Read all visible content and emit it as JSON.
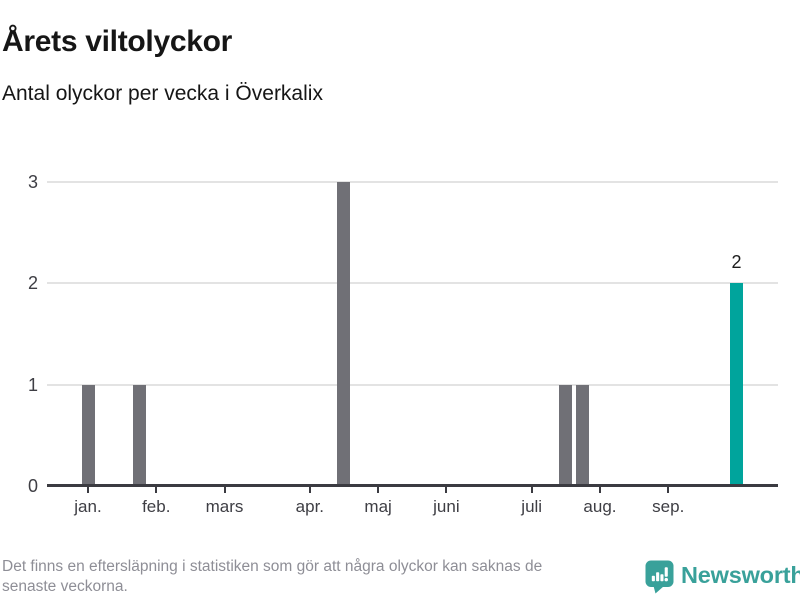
{
  "header": {
    "title": "Årets viltolyckor",
    "subtitle": "Antal olyckor per vecka i Överkalix"
  },
  "footer": {
    "note_lines": [
      "Det finns en eftersläpning i statistiken som gör att några olyckor kan saknas de",
      "senaste veckorna."
    ],
    "brand": "Newsworthy"
  },
  "chart_data": {
    "type": "bar",
    "title": "Årets viltolyckor",
    "subtitle": "Antal olyckor per vecka i Överkalix",
    "x_unit": "vecka (weekly bars, januari till september)",
    "ylabel": "Antal olyckor",
    "ylim": [
      0,
      3.2
    ],
    "y_ticks": [
      0,
      1,
      2,
      3
    ],
    "gridline_values": [
      1,
      2,
      3
    ],
    "grid": "horizontal only",
    "legend": "none",
    "x_ticks": [
      {
        "week": 2,
        "label": "jan."
      },
      {
        "week": 6,
        "label": "feb."
      },
      {
        "week": 10,
        "label": "mars"
      },
      {
        "week": 15,
        "label": "apr."
      },
      {
        "week": 19,
        "label": "maj"
      },
      {
        "week": 23,
        "label": "juni"
      },
      {
        "week": 28,
        "label": "juli"
      },
      {
        "week": 32,
        "label": "aug."
      },
      {
        "week": 36,
        "label": "sep."
      }
    ],
    "bars": [
      {
        "week": 2,
        "value": 1,
        "highlight": false
      },
      {
        "week": 5,
        "value": 1,
        "highlight": false
      },
      {
        "week": 17,
        "value": 3,
        "highlight": false
      },
      {
        "week": 30,
        "value": 1,
        "highlight": false
      },
      {
        "week": 31,
        "value": 1,
        "highlight": false
      },
      {
        "week": 40,
        "value": 2,
        "highlight": true,
        "data_label": "2"
      }
    ],
    "all_other_weeks_value": 0,
    "colors": {
      "bar": "#707076",
      "bar_highlight": "#00a49c",
      "gridline": "#e3e3e3",
      "axis": "#3b3b41",
      "axis_text": "#3e3e44",
      "title_text": "#161616",
      "note_text": "#8e8e96",
      "brand": "#39a19a",
      "background": "#ffffff"
    }
  }
}
